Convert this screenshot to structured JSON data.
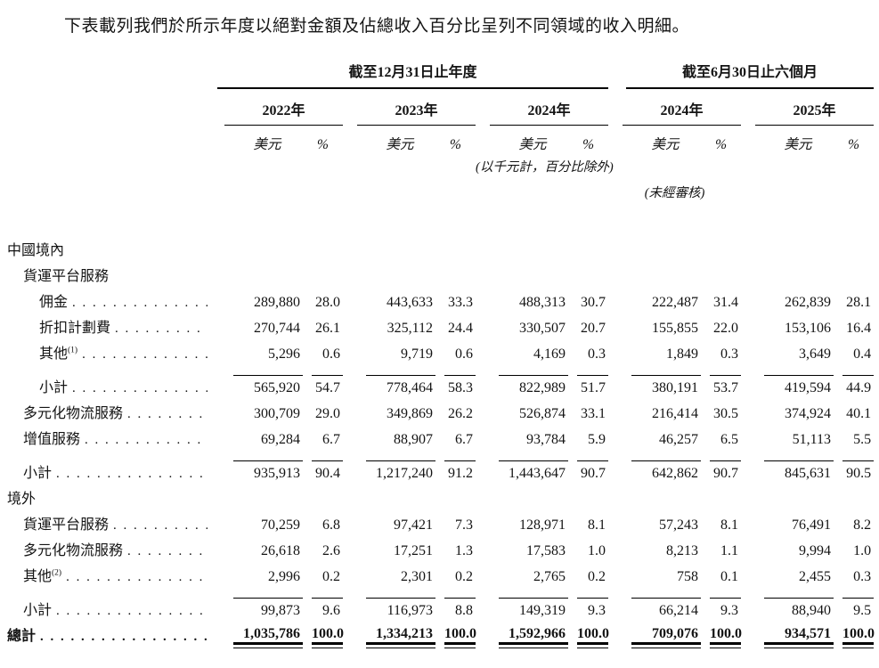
{
  "title": "下表載列我們於所示年度以絕對金額及佔總收入百分比呈列不同領域的收入明細。",
  "table": {
    "col_groups": [
      {
        "label": "截至12月31日止年度",
        "years": [
          "2022年",
          "2023年",
          "2024年"
        ]
      },
      {
        "label": "截至6月30日止六個月",
        "years": [
          "2024年",
          "2025年"
        ]
      }
    ],
    "unit_amount": "美元",
    "unit_percent": "%",
    "notes": {
      "units": "(以千元計，百分比除外)",
      "unaudited": "(未經審核)"
    },
    "rows": [
      {
        "label": "中國境內",
        "indent": 0,
        "dots": false,
        "values": null
      },
      {
        "label": "貨運平台服務",
        "indent": 1,
        "dots": false,
        "values": null
      },
      {
        "label": "佣金",
        "indent": 2,
        "dots": true,
        "values": [
          "289,880",
          "28.0",
          "443,633",
          "33.3",
          "488,313",
          "30.7",
          "222,487",
          "31.4",
          "262,839",
          "28.1"
        ]
      },
      {
        "label": "折扣計劃費",
        "indent": 2,
        "dots": true,
        "values": [
          "270,744",
          "26.1",
          "325,112",
          "24.4",
          "330,507",
          "20.7",
          "155,855",
          "22.0",
          "153,106",
          "16.4"
        ]
      },
      {
        "label": "其他",
        "sup": "(1)",
        "indent": 2,
        "dots": true,
        "values": [
          "5,296",
          "0.6",
          "9,719",
          "0.6",
          "4,169",
          "0.3",
          "1,849",
          "0.3",
          "3,649",
          "0.4"
        ]
      },
      {
        "label": "小計",
        "indent": 2,
        "dots": true,
        "rule_above": true,
        "values": [
          "565,920",
          "54.7",
          "778,464",
          "58.3",
          "822,989",
          "51.7",
          "380,191",
          "53.7",
          "419,594",
          "44.9"
        ]
      },
      {
        "label": "多元化物流服務",
        "indent": 1,
        "dots": true,
        "values": [
          "300,709",
          "29.0",
          "349,869",
          "26.2",
          "526,874",
          "33.1",
          "216,414",
          "30.5",
          "374,924",
          "40.1"
        ]
      },
      {
        "label": "增值服務",
        "indent": 1,
        "dots": true,
        "values": [
          "69,284",
          "6.7",
          "88,907",
          "6.7",
          "93,784",
          "5.9",
          "46,257",
          "6.5",
          "51,113",
          "5.5"
        ]
      },
      {
        "label": "小計",
        "indent": 1,
        "dots": true,
        "rule_above": true,
        "values": [
          "935,913",
          "90.4",
          "1,217,240",
          "91.2",
          "1,443,647",
          "90.7",
          "642,862",
          "90.7",
          "845,631",
          "90.5"
        ]
      },
      {
        "label": "境外",
        "indent": 0,
        "dots": false,
        "values": null
      },
      {
        "label": "貨運平台服務",
        "indent": 1,
        "dots": true,
        "values": [
          "70,259",
          "6.8",
          "97,421",
          "7.3",
          "128,971",
          "8.1",
          "57,243",
          "8.1",
          "76,491",
          "8.2"
        ]
      },
      {
        "label": "多元化物流服務",
        "indent": 1,
        "dots": true,
        "values": [
          "26,618",
          "2.6",
          "17,251",
          "1.3",
          "17,583",
          "1.0",
          "8,213",
          "1.1",
          "9,994",
          "1.0"
        ]
      },
      {
        "label": "其他",
        "sup": "(2)",
        "indent": 1,
        "dots": true,
        "values": [
          "2,996",
          "0.2",
          "2,301",
          "0.2",
          "2,765",
          "0.2",
          "758",
          "0.1",
          "2,455",
          "0.3"
        ]
      },
      {
        "label": "小計",
        "indent": 1,
        "dots": true,
        "rule_above": true,
        "values": [
          "99,873",
          "9.6",
          "116,973",
          "8.8",
          "149,319",
          "9.3",
          "66,214",
          "9.3",
          "88,940",
          "9.5"
        ]
      },
      {
        "label": "總計",
        "indent": 0,
        "dots": true,
        "bold": true,
        "double_rule_below": true,
        "values": [
          "1,035,786",
          "100.0",
          "1,334,213",
          "100.0",
          "1,592,966",
          "100.0",
          "709,076",
          "100.0",
          "934,571",
          "100.0"
        ]
      }
    ]
  }
}
